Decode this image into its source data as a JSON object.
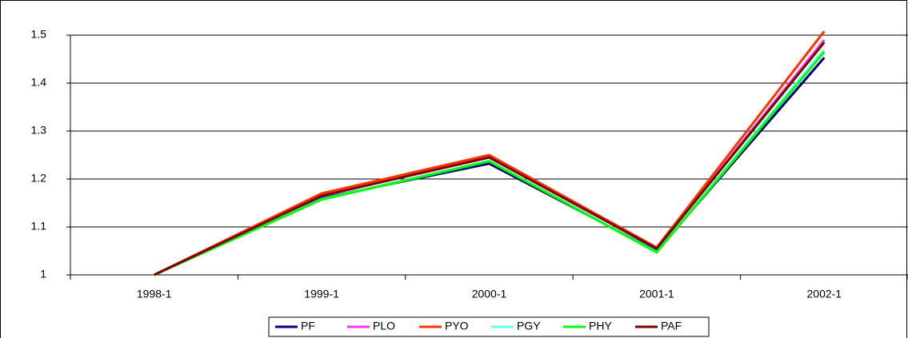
{
  "chart_data": {
    "type": "line",
    "categories": [
      "1998-1",
      "1999-1",
      "2000-1",
      "2001-1",
      "2002-1"
    ],
    "series": [
      {
        "name": "PF",
        "color": "#000080",
        "values": [
          1,
          1.16,
          1.232,
          1.05,
          1.453
        ]
      },
      {
        "name": "PLO",
        "color": "#ff33ff",
        "values": [
          1,
          1.165,
          1.245,
          1.055,
          1.49
        ]
      },
      {
        "name": "PYO",
        "color": "#ff3300",
        "values": [
          1,
          1.17,
          1.25,
          1.057,
          1.508
        ]
      },
      {
        "name": "PGY",
        "color": "#66ffff",
        "values": [
          1,
          1.158,
          1.238,
          1.048,
          1.47
        ]
      },
      {
        "name": "PHY",
        "color": "#00ff00",
        "values": [
          1,
          1.157,
          1.237,
          1.047,
          1.465
        ]
      },
      {
        "name": "PAF",
        "color": "#800000",
        "values": [
          1,
          1.165,
          1.245,
          1.055,
          1.485
        ]
      }
    ],
    "ylim": [
      1,
      1.5
    ],
    "yticks": [
      1,
      1.1,
      1.2,
      1.3,
      1.4,
      1.5
    ],
    "grid": true
  }
}
